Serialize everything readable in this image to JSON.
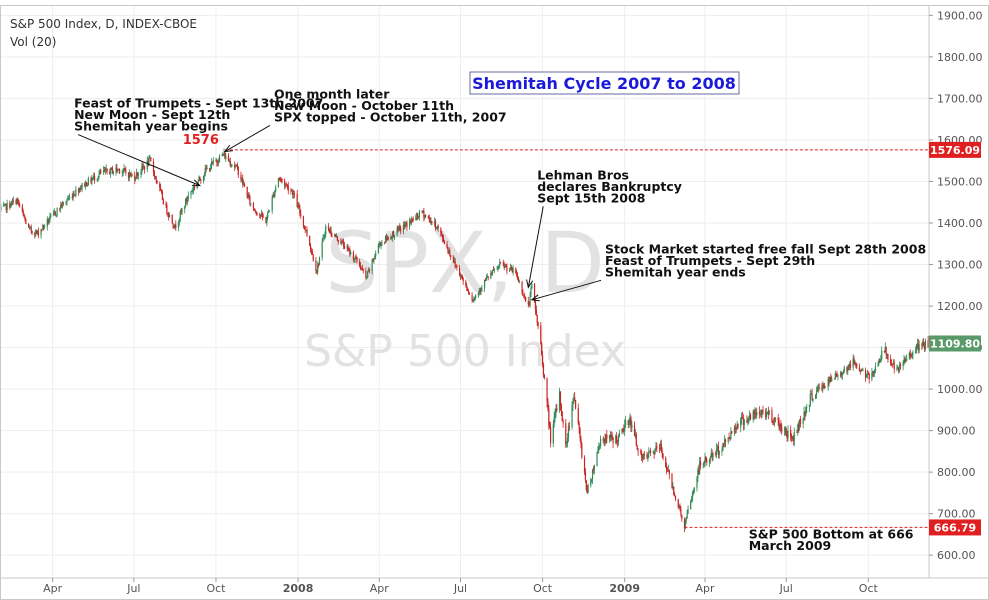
{
  "header": {
    "symbol": "S&P 500 Index, D, INDEX-CBOE",
    "volume": "Vol (20)"
  },
  "watermark": {
    "ticker": "SPX, D",
    "name": "S&P 500 Index"
  },
  "chart_data": {
    "type": "candlestick",
    "title": "Shemitah Cycle 2007 to 2008",
    "xlabel": "",
    "ylabel": "",
    "ylim": [
      545,
      1925
    ],
    "x_range": [
      "2007-02-01",
      "2009-12-08"
    ],
    "y_ticks": [
      "1900.00",
      "1800.00",
      "1700.00",
      "1600.00",
      "1500.00",
      "1400.00",
      "1300.00",
      "1200.00",
      "1100.00",
      "1000.00",
      "900.00",
      "800.00",
      "700.00",
      "600.00"
    ],
    "x_ticks": [
      {
        "label": "Apr",
        "date": "2007-04-01",
        "bold": false
      },
      {
        "label": "Jul",
        "date": "2007-07-01",
        "bold": false
      },
      {
        "label": "Oct",
        "date": "2007-10-01",
        "bold": false
      },
      {
        "label": "2008",
        "date": "2008-01-01",
        "bold": true
      },
      {
        "label": "Apr",
        "date": "2008-04-01",
        "bold": false
      },
      {
        "label": "Jul",
        "date": "2008-07-01",
        "bold": false
      },
      {
        "label": "Oct",
        "date": "2008-10-01",
        "bold": false
      },
      {
        "label": "2009",
        "date": "2009-01-01",
        "bold": true
      },
      {
        "label": "Apr",
        "date": "2009-04-01",
        "bold": false
      },
      {
        "label": "Jul",
        "date": "2009-07-01",
        "bold": false
      },
      {
        "label": "Oct",
        "date": "2009-10-01",
        "bold": false
      }
    ],
    "price_path": [
      [
        "2007-02-01",
        1430
      ],
      [
        "2007-02-20",
        1455
      ],
      [
        "2007-03-05",
        1385
      ],
      [
        "2007-03-15",
        1375
      ],
      [
        "2007-04-10",
        1440
      ],
      [
        "2007-05-01",
        1485
      ],
      [
        "2007-05-25",
        1520
      ],
      [
        "2007-06-15",
        1530
      ],
      [
        "2007-07-01",
        1510
      ],
      [
        "2007-07-19",
        1550
      ],
      [
        "2007-08-05",
        1440
      ],
      [
        "2007-08-16",
        1390
      ],
      [
        "2007-09-01",
        1470
      ],
      [
        "2007-09-19",
        1525
      ],
      [
        "2007-10-09",
        1565
      ],
      [
        "2007-10-25",
        1530
      ],
      [
        "2007-11-10",
        1440
      ],
      [
        "2007-11-26",
        1405
      ],
      [
        "2007-12-10",
        1510
      ],
      [
        "2007-12-26",
        1475
      ],
      [
        "2008-01-10",
        1380
      ],
      [
        "2008-01-22",
        1285
      ],
      [
        "2008-02-01",
        1390
      ],
      [
        "2008-02-20",
        1350
      ],
      [
        "2008-03-10",
        1300
      ],
      [
        "2008-03-17",
        1265
      ],
      [
        "2008-04-01",
        1350
      ],
      [
        "2008-05-01",
        1395
      ],
      [
        "2008-05-19",
        1425
      ],
      [
        "2008-06-05",
        1390
      ],
      [
        "2008-06-25",
        1300
      ],
      [
        "2008-07-15",
        1215
      ],
      [
        "2008-07-30",
        1265
      ],
      [
        "2008-08-15",
        1300
      ],
      [
        "2008-09-01",
        1280
      ],
      [
        "2008-09-15",
        1195
      ],
      [
        "2008-09-19",
        1250
      ],
      [
        "2008-09-29",
        1105
      ],
      [
        "2008-10-10",
        880
      ],
      [
        "2008-10-20",
        985
      ],
      [
        "2008-10-27",
        860
      ],
      [
        "2008-11-05",
        990
      ],
      [
        "2008-11-20",
        750
      ],
      [
        "2008-12-05",
        880
      ],
      [
        "2008-12-25",
        880
      ],
      [
        "2009-01-06",
        930
      ],
      [
        "2009-01-20",
        830
      ],
      [
        "2009-02-10",
        860
      ],
      [
        "2009-03-02",
        720
      ],
      [
        "2009-03-09",
        670
      ],
      [
        "2009-03-26",
        815
      ],
      [
        "2009-04-20",
        860
      ],
      [
        "2009-05-08",
        920
      ],
      [
        "2009-06-05",
        945
      ],
      [
        "2009-06-12",
        940
      ],
      [
        "2009-07-08",
        880
      ],
      [
        "2009-07-30",
        985
      ],
      [
        "2009-08-25",
        1030
      ],
      [
        "2009-09-15",
        1065
      ],
      [
        "2009-10-02",
        1025
      ],
      [
        "2009-10-19",
        1095
      ],
      [
        "2009-11-02",
        1040
      ],
      [
        "2009-11-20",
        1095
      ],
      [
        "2009-12-08",
        1109
      ]
    ],
    "price_labels": [
      {
        "value": 1576.09,
        "text": "1576.09",
        "color": "#e02020",
        "line": true,
        "from": "2007-10-11"
      },
      {
        "value": 1109.8,
        "text": "1109.80",
        "color": "#5a9a6a",
        "line": false
      },
      {
        "value": 666.79,
        "text": "666.79",
        "color": "#e02020",
        "line": true,
        "from": "2009-03-09"
      }
    ],
    "peak_label": {
      "text": "1576",
      "date": "2007-10-11",
      "value": 1576
    },
    "annotations": [
      {
        "lines": [
          "Feast of Trumpets - Sept 13th 2007",
          "New Moon - Sept 12th",
          "Shemitah year begins"
        ],
        "anchor": [
          "2007-04-25",
          1678
        ],
        "arrow_to": [
          "2007-09-13",
          1490
        ]
      },
      {
        "lines": [
          "One month later",
          "New Moon - October 11th",
          "SPX topped - October 11th, 2007"
        ],
        "anchor": [
          "2007-12-05",
          1700
        ],
        "arrow_to": [
          "2007-10-11",
          1572
        ]
      },
      {
        "lines": [
          "Lehman Bros",
          "declares Bankruptcy",
          "Sept 15th 2008"
        ],
        "anchor": [
          "2008-09-25",
          1505
        ],
        "arrow_to": [
          "2008-09-15",
          1245
        ]
      },
      {
        "lines": [
          "Stock Market started free fall Sept 28th 2008",
          "Feast of Trumpets - Sept 29th",
          "Shemitah year ends"
        ],
        "anchor": [
          "2008-12-10",
          1327
        ],
        "arrow_to": [
          "2008-09-19",
          1215
        ]
      },
      {
        "lines": [
          "S&P 500 Bottom at 666",
          "March 2009"
        ],
        "anchor": [
          "2009-05-20",
          640
        ],
        "arrow_to": null
      }
    ]
  },
  "colors": {
    "up": "#2e8b57",
    "down": "#cc2222",
    "grid": "#eeeeee",
    "border": "#c8c8c8",
    "title_border": "#6a6aa0"
  }
}
